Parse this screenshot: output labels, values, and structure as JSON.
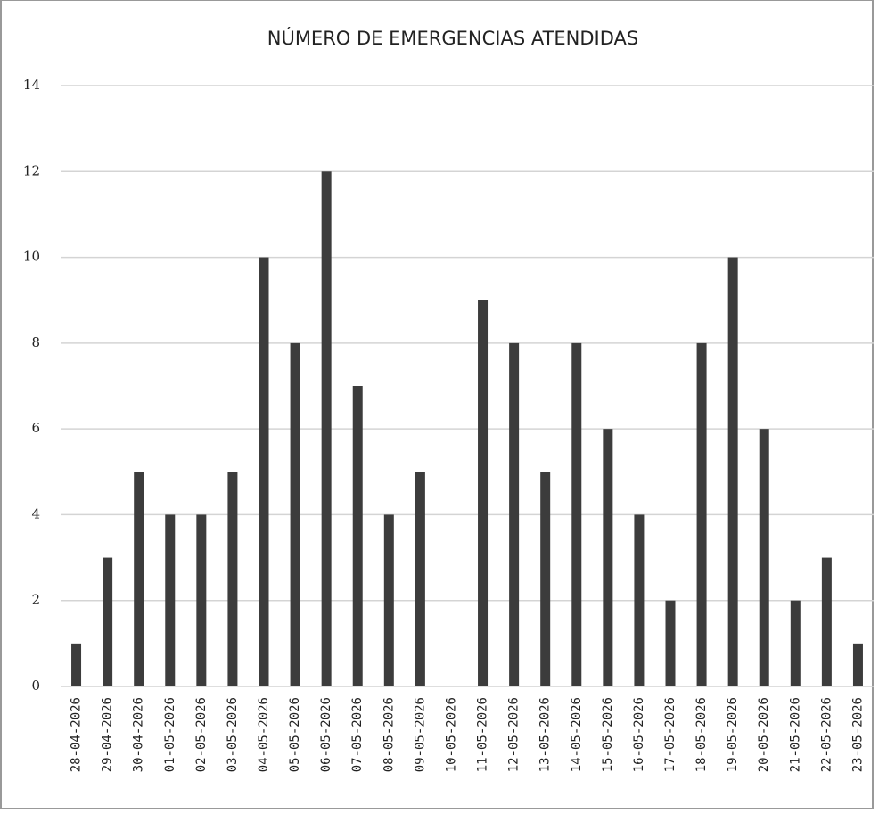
{
  "chart_data": {
    "type": "bar",
    "title": "NÚMERO DE EMERGENCIAS ATENDIDAS",
    "categories": [
      "28-04-2026",
      "29-04-2026",
      "30-04-2026",
      "01-05-2026",
      "02-05-2026",
      "03-05-2026",
      "04-05-2026",
      "05-05-2026",
      "06-05-2026",
      "07-05-2026",
      "08-05-2026",
      "09-05-2026",
      "10-05-2026",
      "11-05-2026",
      "12-05-2026",
      "13-05-2026",
      "14-05-2026",
      "15-05-2026",
      "16-05-2026",
      "17-05-2026",
      "18-05-2026",
      "19-05-2026",
      "20-05-2026",
      "21-05-2026",
      "22-05-2026",
      "23-05-2026"
    ],
    "values": [
      1,
      3,
      5,
      4,
      4,
      5,
      10,
      8,
      12,
      7,
      4,
      5,
      0,
      9,
      8,
      5,
      8,
      6,
      4,
      2,
      8,
      10,
      6,
      2,
      3,
      1
    ],
    "color": "#3c3c3c",
    "ylim": [
      0,
      14
    ],
    "yticks": [
      0,
      2,
      4,
      6,
      8,
      10,
      12,
      14
    ],
    "grid": true
  }
}
